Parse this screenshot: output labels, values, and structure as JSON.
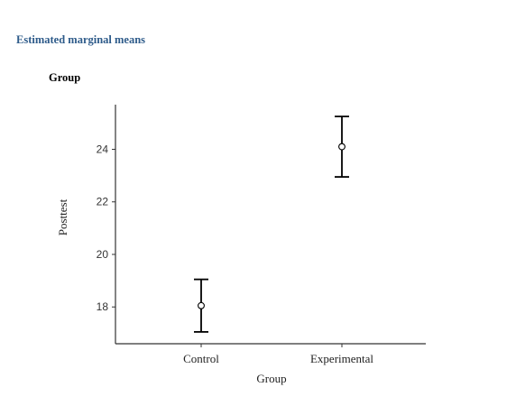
{
  "header": {
    "section_title": "Estimated marginal means",
    "sub_title": "Group"
  },
  "chart_data": {
    "type": "scatter",
    "categories": [
      "Control",
      "Experimental"
    ],
    "series": [
      {
        "values": [
          18.05,
          24.1
        ],
        "lower": [
          17.05,
          22.95
        ],
        "upper": [
          19.05,
          25.25
        ]
      }
    ],
    "xlabel": "Group",
    "ylabel": "Posttest",
    "ylim": [
      16.6,
      25.7
    ],
    "yticks": [
      18,
      20,
      22,
      24
    ],
    "grid": false,
    "colors": {
      "line": "#000000",
      "point_fill": "#ffffff",
      "axis": "#333333"
    }
  }
}
